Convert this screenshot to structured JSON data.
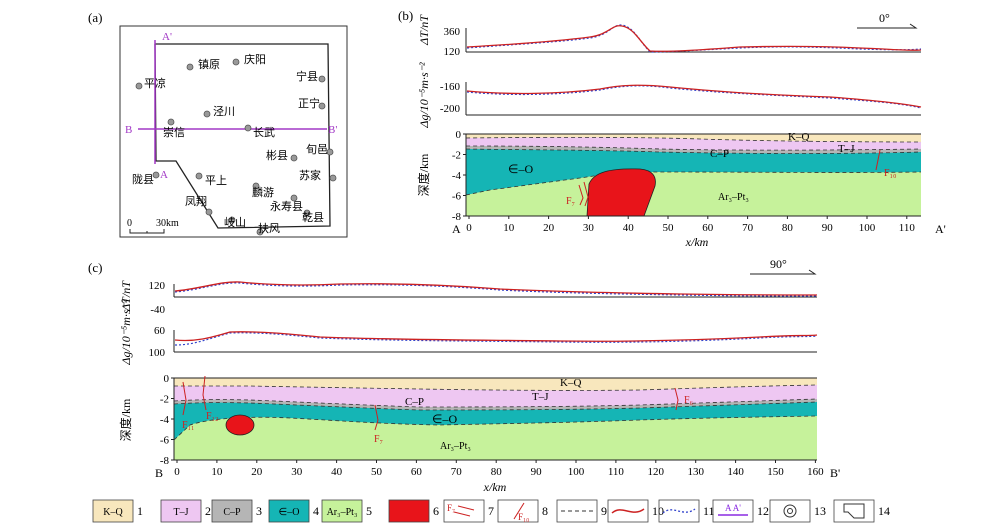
{
  "panel_a": {
    "label": "(a)",
    "scale_label": "30km",
    "scale_zero": "0",
    "line_labels": {
      "a_top": "A'",
      "a_bottom": "A",
      "b_left": "B",
      "b_right": "B'"
    },
    "towns": [
      "镇原",
      "庆阳",
      "平凉",
      "泾川",
      "宁县",
      "崇信",
      "长武",
      "正宁",
      "旬邑",
      "彬县",
      "陇县",
      "平上",
      "苏家",
      "麟游",
      "凤翔",
      "永寿县",
      "岐山",
      "乾县",
      "扶风"
    ]
  },
  "panel_b": {
    "label": "(b)",
    "direction": "0°",
    "mag_ylabel": "ΔT/nT",
    "mag_ticks": [
      "360",
      "120"
    ],
    "grav_ylabel": "Δg/10⁻⁵m·s⁻²",
    "grav_ticks": [
      "-160",
      "-200"
    ],
    "depth_ylabel": "深度/km",
    "depth_ticks": [
      "0",
      "-2",
      "-4",
      "-6",
      "-8"
    ],
    "x_ticks": [
      "0",
      "10",
      "20",
      "30",
      "40",
      "50",
      "60",
      "70",
      "80",
      "90",
      "100",
      "110"
    ],
    "xlabel": "x/km",
    "end_left": "A",
    "end_right": "A'",
    "units": [
      "K–Q",
      "C–P",
      "T–J",
      "∈–O",
      "Ar₃–Pt₃"
    ],
    "faults": [
      "F₇",
      "F₁₀"
    ]
  },
  "panel_c": {
    "label": "(c)",
    "direction": "90°",
    "mag_ylabel": "ΔT/nT",
    "mag_ticks": [
      "120",
      "-40"
    ],
    "grav_ylabel": "Δg/10⁻⁵m·s⁻²",
    "grav_ticks": [
      "60",
      "100"
    ],
    "depth_ylabel": "深度/km",
    "depth_ticks": [
      "0",
      "-2",
      "-4",
      "-6",
      "-8"
    ],
    "x_ticks": [
      "0",
      "10",
      "20",
      "30",
      "40",
      "50",
      "60",
      "70",
      "80",
      "90",
      "100",
      "110",
      "120",
      "130",
      "140",
      "150",
      "160"
    ],
    "xlabel": "x/km",
    "end_left": "B",
    "end_right": "B'",
    "units": [
      "K–Q",
      "C–P",
      "T–J",
      "∈–O",
      "Ar₃–Pt₃"
    ],
    "faults": [
      "F₁₁",
      "F₁₂",
      "F₇",
      "F₆"
    ]
  },
  "legend": [
    {
      "swatch": "K–Q",
      "num": "1",
      "color": "#f8e7bd"
    },
    {
      "swatch": "T–J",
      "num": "2",
      "color": "#eec7f2"
    },
    {
      "swatch": "C–P",
      "num": "3",
      "color": "#b5b5b5"
    },
    {
      "swatch": "∈–O",
      "num": "4",
      "color": "#15b5b5"
    },
    {
      "swatch": "Ar₃–Pt₃",
      "num": "5",
      "color": "#c6f29b"
    },
    {
      "swatch": "",
      "num": "6",
      "color": "#e8141a"
    },
    {
      "swatch": "F₇",
      "num": "7",
      "color": ""
    },
    {
      "swatch": "F₁₀",
      "num": "8",
      "color": ""
    },
    {
      "swatch": "",
      "num": "9",
      "color": ""
    },
    {
      "swatch": "",
      "num": "10",
      "color": "#cc2222"
    },
    {
      "swatch": "",
      "num": "11",
      "color": "#3344cc"
    },
    {
      "swatch": "A  A'",
      "num": "12",
      "color": "#8a2be2"
    },
    {
      "swatch": "",
      "num": "13",
      "color": ""
    },
    {
      "swatch": "",
      "num": "14",
      "color": ""
    }
  ]
}
